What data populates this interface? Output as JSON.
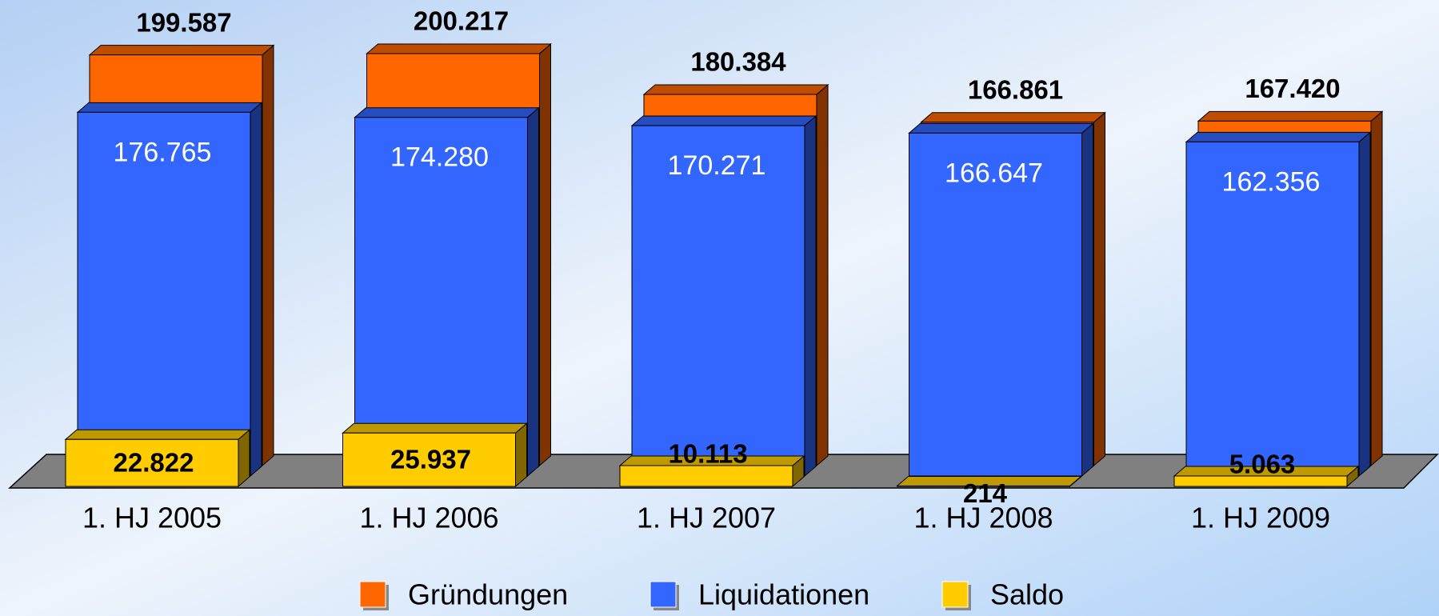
{
  "chart_data": {
    "type": "bar3d",
    "categories": [
      "1. HJ 2005",
      "1. HJ 2006",
      "1. HJ 2007",
      "1. HJ 2008",
      "1. HJ 2009"
    ],
    "series": [
      {
        "name": "Gründungen",
        "color": "#ff6600",
        "values": [
          199587,
          200217,
          180384,
          166861,
          167420
        ],
        "value_labels": [
          "199.587",
          "200.217",
          "180.384",
          "166.861",
          "167.420"
        ]
      },
      {
        "name": "Liquidationen",
        "color": "#3366ff",
        "values": [
          176765,
          174280,
          170271,
          166647,
          162356
        ],
        "value_labels": [
          "176.765",
          "174.280",
          "170.271",
          "166.647",
          "162.356"
        ]
      },
      {
        "name": "Saldo",
        "color": "#ffcc00",
        "values": [
          22822,
          25937,
          10113,
          214,
          5063
        ],
        "value_labels": [
          "22.822",
          "25.937",
          "10.113",
          "214",
          "5.063"
        ]
      }
    ],
    "legend": "bottom"
  }
}
